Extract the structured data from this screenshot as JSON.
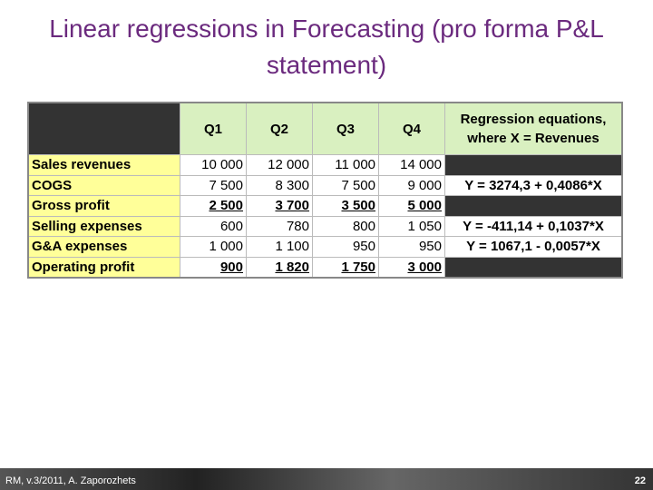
{
  "title": "Linear regressions in Forecasting (pro forma P&L statement)",
  "table": {
    "quarters": [
      "Q1",
      "Q2",
      "Q3",
      "Q4"
    ],
    "regression": "Regression equations, where X = Revenues",
    "rows": [
      {
        "label": "Sales revenues",
        "values": [
          "10 000",
          "12 000",
          "11 000",
          "14 000"
        ]
      },
      {
        "label": "COGS",
        "values": [
          "7 500",
          "8 300",
          "7 500",
          "9 000"
        ],
        "equation": "Y = 3274,3 + 0,4086*X"
      },
      {
        "label": "Gross profit",
        "values": [
          "2 500",
          "3 700",
          "3 500",
          "5 000"
        ],
        "bold": true
      },
      {
        "label": "Selling expenses",
        "values": [
          "600",
          "780",
          "800",
          "1 050"
        ],
        "equation": "Y = -411,14 + 0,1037*X"
      },
      {
        "label": "G&A expenses",
        "values": [
          "1 000",
          "1 100",
          "950",
          "950"
        ],
        "equation": "Y = 1067,1 - 0,0057*X"
      },
      {
        "label": "Operating profit",
        "values": [
          "900",
          "1 820",
          "1 750",
          "3 000"
        ],
        "bold": true
      }
    ]
  },
  "footer": {
    "author": "RM, v.3/2011, A. Zaporozhets",
    "page": "22"
  }
}
